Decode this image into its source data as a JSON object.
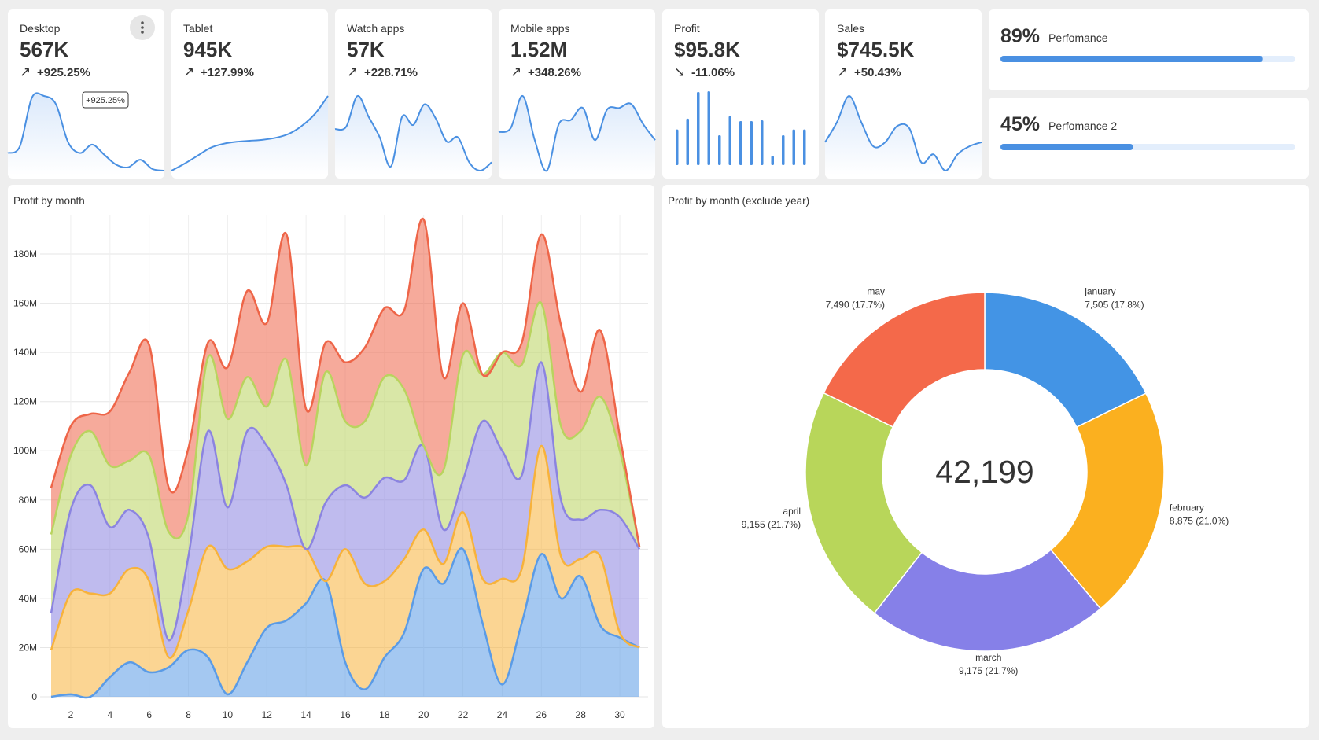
{
  "kpis": [
    {
      "label": "Desktop",
      "value": "567K",
      "arrow": "↗",
      "change": "+925.25%",
      "spark": {
        "type": "line",
        "values": [
          22,
          30,
          88,
          90,
          80,
          35,
          22,
          32,
          20,
          8,
          5,
          14,
          3,
          1
        ]
      }
    },
    {
      "label": "Tablet",
      "value": "945K",
      "arrow": "↗",
      "change": "+127.99%",
      "spark": {
        "type": "line",
        "values": [
          5,
          12,
          20,
          28,
          32,
          34,
          35,
          36,
          38,
          42,
          50,
          62,
          80
        ]
      }
    },
    {
      "label": "Watch apps",
      "value": "57K",
      "arrow": "↗",
      "change": "+228.71%",
      "spark": {
        "type": "line",
        "values": [
          55,
          58,
          95,
          70,
          45,
          10,
          70,
          60,
          85,
          68,
          40,
          45,
          15,
          5,
          15
        ]
      }
    },
    {
      "label": "Mobile apps",
      "value": "1.52M",
      "arrow": "↗",
      "change": "+348.26%",
      "spark": {
        "type": "line",
        "values": [
          50,
          55,
          95,
          40,
          2,
          60,
          65,
          80,
          40,
          78,
          80,
          85,
          60,
          40
        ]
      }
    },
    {
      "label": "Profit",
      "value": "$95.8K",
      "arrow": "↘",
      "change": "-11.06%",
      "spark": {
        "type": "bar",
        "values": [
          43,
          56,
          88,
          89,
          36,
          59,
          53,
          53,
          54,
          11,
          36,
          43,
          43
        ]
      }
    },
    {
      "label": "Sales",
      "value": "$745.5K",
      "arrow": "↗",
      "change": "+50.43%",
      "spark": {
        "type": "line",
        "values": [
          35,
          60,
          92,
          60,
          30,
          35,
          55,
          52,
          10,
          20,
          0,
          20,
          30,
          35
        ]
      }
    }
  ],
  "progress": [
    {
      "percent": {
        "value": 89,
        "label": "89%"
      },
      "label": "Perfomance"
    },
    {
      "percent": {
        "value": 45,
        "label": "45%"
      },
      "label": "Perfomance 2"
    }
  ],
  "chart_data": [
    {
      "type": "stacked_area",
      "title": "Profit by month",
      "x": [
        1,
        2,
        3,
        4,
        5,
        6,
        7,
        8,
        9,
        10,
        11,
        12,
        13,
        14,
        15,
        16,
        17,
        18,
        19,
        20,
        21,
        22,
        23,
        24,
        25,
        26,
        27,
        28,
        29,
        30,
        31
      ],
      "xlim": [
        1,
        31
      ],
      "xticks": [
        2,
        4,
        6,
        8,
        10,
        12,
        14,
        16,
        18,
        20,
        22,
        24,
        26,
        28,
        30
      ],
      "ylim": [
        0,
        196000000
      ],
      "yticks": [
        0,
        {
          "value": 20000000,
          "label": "20M"
        },
        {
          "value": 40000000,
          "label": "40M"
        },
        {
          "value": 60000000,
          "label": "60M"
        },
        {
          "value": 80000000,
          "label": "80M"
        },
        {
          "value": 100000000,
          "label": "100M"
        },
        {
          "value": 120000000,
          "label": "120M"
        },
        {
          "value": 140000000,
          "label": "140M"
        },
        {
          "value": 160000000,
          "label": "160M"
        },
        {
          "value": 180000000,
          "label": "180M"
        }
      ],
      "grid": true,
      "series": [
        {
          "color": "#5a9be6",
          "values": [
            0,
            1000000,
            0,
            8000000,
            14000000,
            10000000,
            12000000,
            19000000,
            16000000,
            1000000,
            14000000,
            28000000,
            31000000,
            38000000,
            47000000,
            14000000,
            3000000,
            16000000,
            26000000,
            52000000,
            46000000,
            60000000,
            30000000,
            5000000,
            30000000,
            58000000,
            40000000,
            49000000,
            29000000,
            24000000,
            20000000
          ]
        },
        {
          "color": "#f7b23b",
          "values": [
            19000000,
            41000000,
            42000000,
            34000000,
            38000000,
            37000000,
            4000000,
            16000000,
            45000000,
            51000000,
            41000000,
            33000000,
            30000000,
            22000000,
            0,
            46000000,
            43000000,
            31000000,
            30000000,
            16000000,
            8000000,
            15000000,
            18000000,
            43000000,
            22000000,
            44000000,
            17000000,
            7000000,
            28000000,
            2000000,
            0
          ]
        },
        {
          "color": "#8b84e0",
          "values": [
            15000000,
            34000000,
            44000000,
            27000000,
            24000000,
            17000000,
            7000000,
            22000000,
            47000000,
            25000000,
            53000000,
            41000000,
            25000000,
            0,
            32000000,
            26000000,
            35000000,
            42000000,
            32000000,
            34000000,
            14000000,
            13000000,
            64000000,
            52000000,
            38000000,
            34000000,
            23000000,
            16000000,
            19000000,
            47000000,
            40000000
          ]
        },
        {
          "color": "#b9d35e",
          "values": [
            32000000,
            22000000,
            22000000,
            25000000,
            20000000,
            34000000,
            44000000,
            17000000,
            30000000,
            36000000,
            22000000,
            16000000,
            51000000,
            34000000,
            53000000,
            26000000,
            31000000,
            41000000,
            37000000,
            0,
            24000000,
            51000000,
            19000000,
            40000000,
            45000000,
            24000000,
            30000000,
            36000000,
            46000000,
            27000000,
            1000000
          ]
        },
        {
          "color": "#ee6548",
          "values": [
            19000000,
            12000000,
            7000000,
            22000000,
            36000000,
            45000000,
            18000000,
            27000000,
            6000000,
            21000000,
            35000000,
            34000000,
            51000000,
            23000000,
            12000000,
            24000000,
            30000000,
            28000000,
            32000000,
            92000000,
            38000000,
            21000000,
            0,
            0,
            9000000,
            28000000,
            41000000,
            16000000,
            27000000,
            6000000,
            0
          ]
        }
      ]
    },
    {
      "type": "donut",
      "title": "Profit by month (exclude year)",
      "center_label": "42,199",
      "categories": [
        "january",
        "february",
        "march",
        "april",
        "may"
      ],
      "values": [
        7505,
        8875,
        9175,
        9155,
        7490
      ],
      "value_labels": [
        "7,505 (17.8%)",
        "8,875 (21.0%)",
        "9,175 (21.7%)",
        "9,155 (21.7%)",
        "7,490 (17.7%)"
      ],
      "colors": [
        "#4394e5",
        "#fbb01f",
        "#8680e8",
        "#b8d65a",
        "#f4694a"
      ]
    }
  ]
}
